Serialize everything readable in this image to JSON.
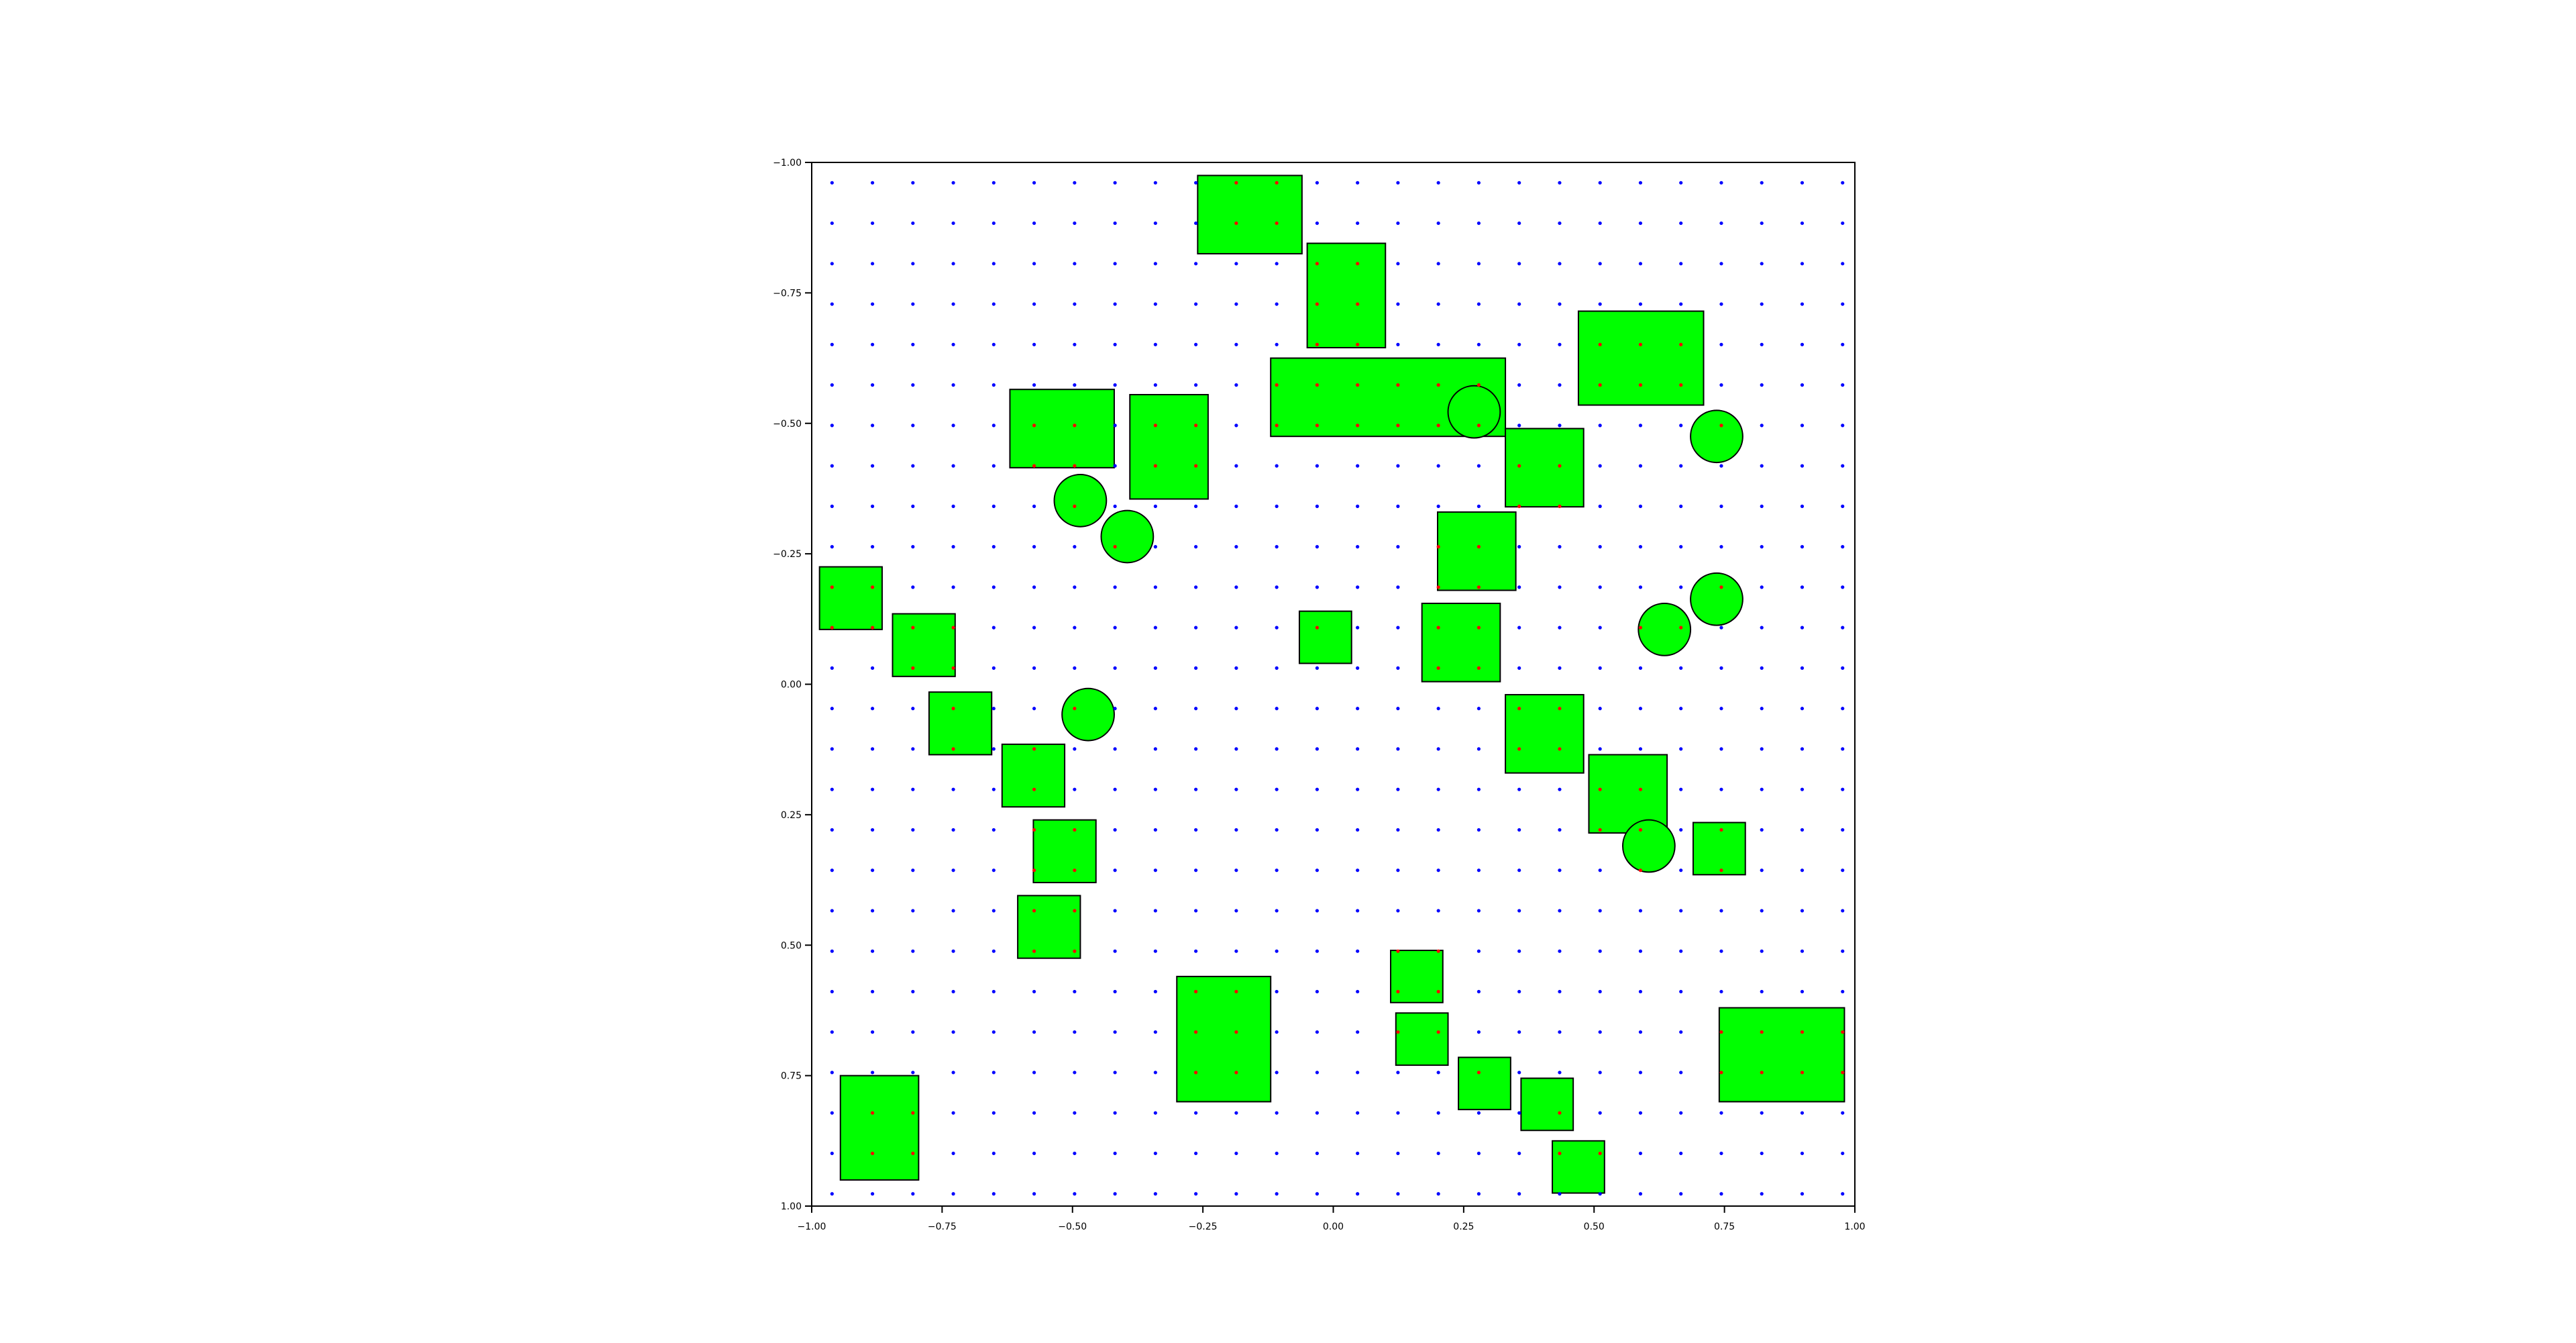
{
  "chart_data": {
    "type": "scatter",
    "title": "",
    "xlabel": "",
    "ylabel": "",
    "xlim": [
      -1.0,
      1.0
    ],
    "ylim": [
      -1.0,
      1.0
    ],
    "y_inverted": true,
    "grid": false,
    "legend": null,
    "xticks": [
      "−1.00",
      "−0.75",
      "−0.50",
      "−0.25",
      "0.00",
      "0.25",
      "0.50",
      "0.75",
      "1.00"
    ],
    "yticks": [
      "−1.00",
      "−0.75",
      "−0.50",
      "−0.25",
      "0.00",
      "0.25",
      "0.50",
      "0.75",
      "1.00"
    ],
    "xtick_values": [
      -1.0,
      -0.75,
      -0.5,
      -0.25,
      0.0,
      0.25,
      0.5,
      0.75,
      1.0
    ],
    "ytick_values": [
      -1.0,
      -0.75,
      -0.5,
      -0.25,
      0.0,
      0.25,
      0.5,
      0.75,
      1.0
    ],
    "point_grid": {
      "x_start": -0.961,
      "y_start": -0.961,
      "step": 0.0775,
      "count": 26,
      "inside_color": "#ff0000",
      "outside_color": "#0000ff"
    },
    "obstacles": {
      "fill": "#00ff00",
      "stroke": "#000000",
      "rectangles": [
        {
          "x0": -0.26,
          "x1": -0.06,
          "y0": -0.975,
          "y1": -0.825
        },
        {
          "x0": -0.05,
          "x1": 0.1,
          "y0": -0.845,
          "y1": -0.645
        },
        {
          "x0": 0.47,
          "x1": 0.71,
          "y0": -0.715,
          "y1": -0.535
        },
        {
          "x0": -0.12,
          "x1": 0.33,
          "y0": -0.625,
          "y1": -0.475
        },
        {
          "x0": -0.62,
          "x1": -0.42,
          "y0": -0.565,
          "y1": -0.415
        },
        {
          "x0": -0.39,
          "x1": -0.24,
          "y0": -0.555,
          "y1": -0.355
        },
        {
          "x0": 0.33,
          "x1": 0.48,
          "y0": -0.49,
          "y1": -0.34
        },
        {
          "x0": 0.2,
          "x1": 0.35,
          "y0": -0.33,
          "y1": -0.18
        },
        {
          "x0": -0.985,
          "x1": -0.865,
          "y0": -0.225,
          "y1": -0.105
        },
        {
          "x0": -0.845,
          "x1": -0.725,
          "y0": -0.135,
          "y1": -0.015
        },
        {
          "x0": -0.065,
          "x1": 0.035,
          "y0": -0.14,
          "y1": -0.04
        },
        {
          "x0": 0.17,
          "x1": 0.32,
          "y0": -0.155,
          "y1": -0.005
        },
        {
          "x0": 0.33,
          "x1": 0.48,
          "y0": 0.02,
          "y1": 0.17
        },
        {
          "x0": -0.775,
          "x1": -0.655,
          "y0": 0.015,
          "y1": 0.135
        },
        {
          "x0": 0.49,
          "x1": 0.64,
          "y0": 0.135,
          "y1": 0.285
        },
        {
          "x0": -0.635,
          "x1": -0.515,
          "y0": 0.115,
          "y1": 0.235
        },
        {
          "x0": -0.575,
          "x1": -0.455,
          "y0": 0.26,
          "y1": 0.38
        },
        {
          "x0": 0.69,
          "x1": 0.79,
          "y0": 0.265,
          "y1": 0.365
        },
        {
          "x0": -0.605,
          "x1": -0.485,
          "y0": 0.405,
          "y1": 0.525
        },
        {
          "x0": 0.11,
          "x1": 0.21,
          "y0": 0.51,
          "y1": 0.61
        },
        {
          "x0": -0.3,
          "x1": -0.12,
          "y0": 0.56,
          "y1": 0.8
        },
        {
          "x0": 0.74,
          "x1": 0.98,
          "y0": 0.62,
          "y1": 0.8
        },
        {
          "x0": 0.12,
          "x1": 0.22,
          "y0": 0.63,
          "y1": 0.73
        },
        {
          "x0": 0.24,
          "x1": 0.34,
          "y0": 0.715,
          "y1": 0.815
        },
        {
          "x0": -0.945,
          "x1": -0.795,
          "y0": 0.75,
          "y1": 0.95
        },
        {
          "x0": 0.36,
          "x1": 0.46,
          "y0": 0.755,
          "y1": 0.855
        },
        {
          "x0": 0.42,
          "x1": 0.52,
          "y0": 0.875,
          "y1": 0.975
        }
      ],
      "circles": [
        {
          "cx": 0.27,
          "cy": -0.522,
          "r": 0.05
        },
        {
          "cx": 0.735,
          "cy": -0.475,
          "r": 0.05
        },
        {
          "cx": -0.485,
          "cy": -0.352,
          "r": 0.05
        },
        {
          "cx": -0.395,
          "cy": -0.283,
          "r": 0.05
        },
        {
          "cx": 0.735,
          "cy": -0.163,
          "r": 0.05
        },
        {
          "cx": 0.635,
          "cy": -0.105,
          "r": 0.05
        },
        {
          "cx": -0.47,
          "cy": 0.058,
          "r": 0.05
        },
        {
          "cx": 0.605,
          "cy": 0.31,
          "r": 0.05
        }
      ]
    }
  }
}
